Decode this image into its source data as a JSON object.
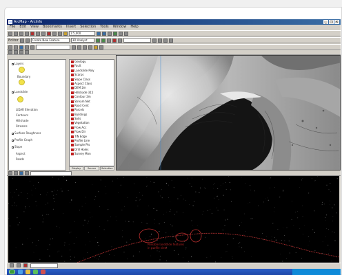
{
  "app": {
    "title": "ArcMap - ArcInfo"
  },
  "menu": [
    "File",
    "Edit",
    "View",
    "Bookmarks",
    "Insert",
    "Selection",
    "Tools",
    "Window",
    "Help"
  ],
  "toolbar": {
    "scale_value": "1:5,000",
    "editor_label": "Editor",
    "task_value": "Create New Feature",
    "target_value": "3D Analyst",
    "layer_value": "",
    "georef_value": ""
  },
  "toc": {
    "items": [
      "Layers",
      "Boundary",
      "Landslide",
      "LiDAR Elevation",
      "Contours",
      "Hillshade",
      "Streams",
      "Surface Roughness",
      "Profile Graph",
      "Slope",
      "Aspect",
      "Roads"
    ]
  },
  "layer_list": {
    "items": [
      "Geology",
      "Fault",
      "Landslide Poly",
      "Scarps",
      "Slope Class",
      "Aspect Class",
      "DEM 2m",
      "Hillshade 315",
      "Contour 2m",
      "Stream Net",
      "Road Cent",
      "Parcels",
      "Buildings",
      "Soils",
      "Vegetation",
      "Flow Acc",
      "Flow Dir",
      "TIN Edge",
      "Profile Line",
      "Sample Pts",
      "Drill Holes",
      "Survey Mon"
    ],
    "tabs": [
      "Display",
      "Source",
      "Selection"
    ]
  },
  "profile": {
    "toolbar_value": "",
    "annotation": "Possible landslide features\nin profile view"
  },
  "status": {
    "coords": "",
    "left": ""
  },
  "taskbar": {
    "tray_time": ""
  },
  "colors": {
    "titlebar": "#0a246a",
    "profile_line": "#b03030",
    "annotation": "#b02020",
    "highlight_swatch": "#f2e24a"
  }
}
